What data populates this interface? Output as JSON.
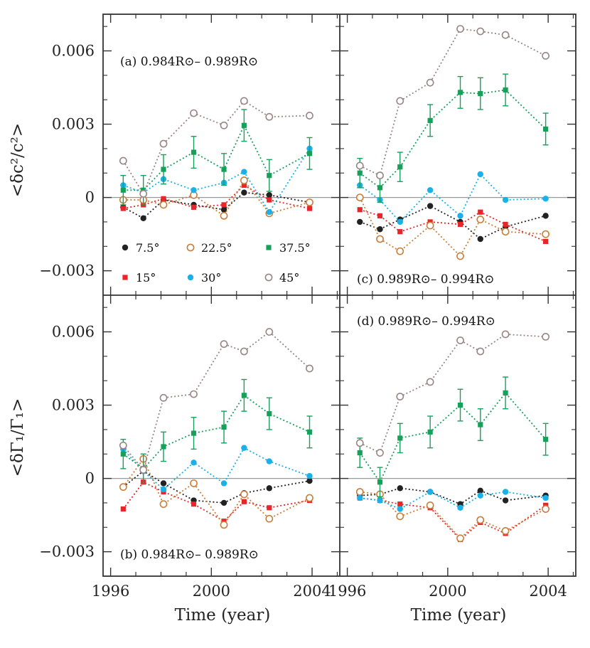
{
  "figure": {
    "xlabel": "Time (year)",
    "ylabel_top": "<δc²/c²>",
    "ylabel_bottom": "<δΓ₁/Γ₁>"
  },
  "colors": {
    "7.5°": "#222222",
    "15°": "#e8262a",
    "22.5°": "#c87f3c",
    "30°": "#1ab0e8",
    "37.5°": "#17a05a",
    "45°": "#9a8585",
    "zero_line": "#999999",
    "axes": "#333333"
  },
  "legend": [
    {
      "label": "7.5°",
      "marker": "filled-circle"
    },
    {
      "label": "22.5°",
      "marker": "open-circle"
    },
    {
      "label": "37.5°",
      "marker": "filled-square"
    },
    {
      "label": "15°",
      "marker": "filled-square"
    },
    {
      "label": "30°",
      "marker": "filled-circle"
    },
    {
      "label": "45°",
      "marker": "open-circle"
    }
  ],
  "chart_data": [
    {
      "type": "line",
      "panel": "a",
      "title": "(a) 0.984R⊙– 0.989R⊙",
      "xlabel": "Time (year)",
      "ylabel": "<δc²/c²>",
      "xlim": [
        1995.7,
        2005.1
      ],
      "ylim": [
        -0.004,
        0.0075
      ],
      "x_ticks": [
        1996,
        2000,
        2004
      ],
      "y_ticks": [
        -0.003,
        0,
        0.003,
        0.006
      ],
      "x_tick_labels": [
        "1996",
        "2000",
        "2004"
      ],
      "y_tick_labels": [
        "−0.003",
        "0",
        "0.003",
        "0.006"
      ],
      "series": [
        {
          "name": "7.5°",
          "x": [
            1996.5,
            1997.3,
            1998.1,
            1999.3,
            2000.5,
            2001.3,
            2002.3,
            2003.9
          ],
          "values": [
            -0.0004,
            -0.00085,
            -0.0001,
            -0.0003,
            -0.0005,
            0.0002,
            0.0001,
            -0.0002
          ]
        },
        {
          "name": "15°",
          "x": [
            1996.5,
            1997.3,
            1998.1,
            1999.3,
            2000.5,
            2001.3,
            2002.3,
            2003.9
          ],
          "values": [
            -0.00045,
            -0.0003,
            -5e-05,
            -0.0004,
            -0.0003,
            0.0005,
            -0.0001,
            -0.00045
          ]
        },
        {
          "name": "22.5°",
          "x": [
            1996.5,
            1997.3,
            1998.1,
            1999.3,
            2000.5,
            2001.3,
            2002.3,
            2003.9
          ],
          "values": [
            -0.0001,
            -0.0001,
            -0.0003,
            0.0001,
            -0.00075,
            0.0007,
            -0.00065,
            -0.0002
          ]
        },
        {
          "name": "30°",
          "x": [
            1996.5,
            1997.3,
            1998.1,
            1999.3,
            2000.5,
            2001.3,
            2002.3,
            2003.9
          ],
          "values": [
            0.0005,
            0.0002,
            0.00075,
            0.0003,
            0.0006,
            0.00105,
            -0.0006,
            0.002
          ]
        },
        {
          "name": "37.5°",
          "x": [
            1996.5,
            1997.3,
            1998.1,
            1999.3,
            2000.5,
            2001.3,
            2002.3,
            2003.9
          ],
          "values": [
            0.0003,
            0.0003,
            0.00115,
            0.00185,
            0.00115,
            0.00295,
            0.0009,
            0.0018
          ],
          "errors": [
            0.0006,
            0.0006,
            0.0006,
            0.00065,
            0.00065,
            0.00065,
            0.00065,
            0.00065
          ]
        },
        {
          "name": "45°",
          "x": [
            1996.5,
            1997.3,
            1998.1,
            1999.3,
            2000.5,
            2001.3,
            2002.3,
            2003.9
          ],
          "values": [
            0.0015,
            0.00015,
            0.0022,
            0.00345,
            0.00295,
            0.00395,
            0.0033,
            0.00335
          ]
        }
      ]
    },
    {
      "type": "line",
      "panel": "c",
      "title": "(c) 0.989R⊙– 0.994R⊙",
      "xlabel": "Time (year)",
      "ylabel": "<δc²/c²>",
      "xlim": [
        1995.7,
        2005.1
      ],
      "ylim": [
        -0.004,
        0.0075
      ],
      "x_ticks": [
        1996,
        2000,
        2004
      ],
      "y_ticks": [
        -0.003,
        0,
        0.003,
        0.006
      ],
      "x_tick_labels": [
        "1996",
        "2000",
        "2004"
      ],
      "y_tick_labels": [
        "−0.003",
        "0",
        "0.003",
        "0.006"
      ],
      "series": [
        {
          "name": "7.5°",
          "x": [
            1996.5,
            1997.3,
            1998.1,
            1999.3,
            2000.5,
            2001.3,
            2002.3,
            2003.9
          ],
          "values": [
            -0.001,
            -0.0013,
            -0.0009,
            -0.00035,
            -0.001,
            -0.0017,
            -0.0012,
            -0.00075
          ]
        },
        {
          "name": "15°",
          "x": [
            1996.5,
            1997.3,
            1998.1,
            1999.3,
            2000.5,
            2001.3,
            2002.3,
            2003.9
          ],
          "values": [
            -0.0005,
            -0.00075,
            -0.0014,
            -0.001,
            -0.0011,
            -0.0006,
            -0.0011,
            -0.0018
          ]
        },
        {
          "name": "22.5°",
          "x": [
            1996.5,
            1997.3,
            1998.1,
            1999.3,
            2000.5,
            2001.3,
            2002.3,
            2003.9
          ],
          "values": [
            0.0,
            -0.0017,
            -0.0022,
            -0.00115,
            -0.0024,
            -0.0009,
            -0.0014,
            -0.0015
          ]
        },
        {
          "name": "30°",
          "x": [
            1996.5,
            1997.3,
            1998.1,
            1999.3,
            2000.5,
            2001.3,
            2002.3,
            2003.9
          ],
          "values": [
            0.0005,
            -0.0001,
            -0.001,
            0.0003,
            -0.00075,
            0.00095,
            -0.0001,
            -5e-05
          ]
        },
        {
          "name": "37.5°",
          "x": [
            1996.5,
            1997.3,
            1998.1,
            1999.3,
            2000.5,
            2001.3,
            2002.3,
            2003.9
          ],
          "values": [
            0.001,
            0.0004,
            0.00125,
            0.00315,
            0.0043,
            0.00425,
            0.0044,
            0.0028
          ],
          "errors": [
            0.0006,
            0.0006,
            0.0006,
            0.00065,
            0.00065,
            0.00065,
            0.00065,
            0.00065
          ]
        },
        {
          "name": "45°",
          "x": [
            1996.5,
            1997.3,
            1998.1,
            1999.3,
            2000.5,
            2001.3,
            2002.3,
            2003.9
          ],
          "values": [
            0.0013,
            0.0009,
            0.00395,
            0.0047,
            0.0069,
            0.0068,
            0.00665,
            0.0058
          ]
        }
      ]
    },
    {
      "type": "line",
      "panel": "b",
      "title": "(b) 0.984R⊙– 0.989R⊙",
      "xlabel": "Time (year)",
      "ylabel": "<δΓ₁/Γ₁>",
      "xlim": [
        1995.7,
        2005.1
      ],
      "ylim": [
        -0.004,
        0.0075
      ],
      "x_ticks": [
        1996,
        2000,
        2004
      ],
      "y_ticks": [
        -0.003,
        0,
        0.003,
        0.006
      ],
      "x_tick_labels": [
        "1996",
        "2000",
        "2004"
      ],
      "y_tick_labels": [
        "−0.003",
        "0",
        "0.003",
        "0.006"
      ],
      "series": [
        {
          "name": "7.5°",
          "x": [
            1996.5,
            1997.3,
            1998.1,
            1999.3,
            2000.5,
            2001.3,
            2002.3,
            2003.9
          ],
          "values": [
            -0.00035,
            0.0003,
            -0.0002,
            -0.0009,
            -0.001,
            -0.0006,
            -0.0004,
            -0.0001
          ]
        },
        {
          "name": "15°",
          "x": [
            1996.5,
            1997.3,
            1998.1,
            1999.3,
            2000.5,
            2001.3,
            2002.3,
            2003.9
          ],
          "values": [
            -0.00125,
            -0.00015,
            -0.00055,
            -0.00105,
            -0.00175,
            -0.00095,
            -0.0012,
            -0.0009
          ]
        },
        {
          "name": "22.5°",
          "x": [
            1996.5,
            1997.3,
            1998.1,
            1999.3,
            2000.5,
            2001.3,
            2002.3,
            2003.9
          ],
          "values": [
            -0.00035,
            0.0008,
            -0.00105,
            -0.0002,
            -0.0019,
            -0.00065,
            -0.00165,
            -0.0008
          ]
        },
        {
          "name": "30°",
          "x": [
            1996.5,
            1997.3,
            1998.1,
            1999.3,
            2000.5,
            2001.3,
            2002.3,
            2003.9
          ],
          "values": [
            0.0012,
            0.0003,
            -0.00045,
            0.00065,
            -0.0002,
            0.00125,
            0.0007,
            0.0001
          ]
        },
        {
          "name": "37.5°",
          "x": [
            1996.5,
            1997.3,
            1998.1,
            1999.3,
            2000.5,
            2001.3,
            2002.3,
            2003.9
          ],
          "values": [
            0.001,
            0.0004,
            0.0013,
            0.00185,
            0.0021,
            0.0034,
            0.00265,
            0.0019
          ],
          "errors": [
            0.0006,
            0.0006,
            0.0006,
            0.00065,
            0.00065,
            0.00065,
            0.00065,
            0.00065
          ]
        },
        {
          "name": "45°",
          "x": [
            1996.5,
            1997.3,
            1998.1,
            1999.3,
            2000.5,
            2001.3,
            2002.3,
            2003.9
          ],
          "values": [
            0.00135,
            0.00035,
            0.0033,
            0.00345,
            0.0055,
            0.0052,
            0.006,
            0.0045
          ]
        }
      ]
    },
    {
      "type": "line",
      "panel": "d",
      "title": "(d) 0.989R⊙– 0.994R⊙",
      "xlabel": "Time (year)",
      "ylabel": "<δΓ₁/Γ₁>",
      "xlim": [
        1995.7,
        2005.1
      ],
      "ylim": [
        -0.004,
        0.0075
      ],
      "x_ticks": [
        1996,
        2000,
        2004
      ],
      "y_ticks": [
        -0.003,
        0,
        0.003,
        0.006
      ],
      "x_tick_labels": [
        "1996",
        "2000",
        "2004"
      ],
      "y_tick_labels": [
        "−0.003",
        "0",
        "0.003",
        "0.006"
      ],
      "series": [
        {
          "name": "7.5°",
          "x": [
            1996.5,
            1997.3,
            1998.1,
            1999.3,
            2000.5,
            2001.3,
            2002.3,
            2003.9
          ],
          "values": [
            -0.0007,
            -0.00065,
            -0.0004,
            -0.00055,
            -0.00105,
            -0.0005,
            -0.0009,
            -0.0007
          ]
        },
        {
          "name": "15°",
          "x": [
            1996.5,
            1997.3,
            1998.1,
            1999.3,
            2000.5,
            2001.3,
            2002.3,
            2003.9
          ],
          "values": [
            -0.0008,
            -0.0009,
            -0.00105,
            -0.0012,
            -0.0025,
            -0.0018,
            -0.00225,
            -0.0011
          ]
        },
        {
          "name": "22.5°",
          "x": [
            1996.5,
            1997.3,
            1998.1,
            1999.3,
            2000.5,
            2001.3,
            2002.3,
            2003.9
          ],
          "values": [
            -0.00055,
            -0.00065,
            -0.00155,
            -0.0011,
            -0.00245,
            -0.0017,
            -0.00215,
            -0.00125
          ]
        },
        {
          "name": "30°",
          "x": [
            1996.5,
            1997.3,
            1998.1,
            1999.3,
            2000.5,
            2001.3,
            2002.3,
            2003.9
          ],
          "values": [
            -0.0008,
            -0.0009,
            -0.00125,
            -0.00055,
            -0.0012,
            -0.0007,
            -0.00055,
            -0.0008
          ]
        },
        {
          "name": "37.5°",
          "x": [
            1996.5,
            1997.3,
            1998.1,
            1999.3,
            2000.5,
            2001.3,
            2002.3,
            2003.9
          ],
          "values": [
            0.00105,
            -0.00015,
            0.00165,
            0.0019,
            0.003,
            0.0022,
            0.0035,
            0.0016
          ],
          "errors": [
            0.0006,
            0.0006,
            0.0006,
            0.00065,
            0.00065,
            0.00065,
            0.00065,
            0.00065
          ]
        },
        {
          "name": "45°",
          "x": [
            1996.5,
            1997.3,
            1998.1,
            1999.3,
            2000.5,
            2001.3,
            2002.3,
            2003.9
          ],
          "values": [
            0.00145,
            0.00105,
            0.00335,
            0.00395,
            0.00565,
            0.0052,
            0.0059,
            0.0058
          ]
        }
      ]
    }
  ]
}
